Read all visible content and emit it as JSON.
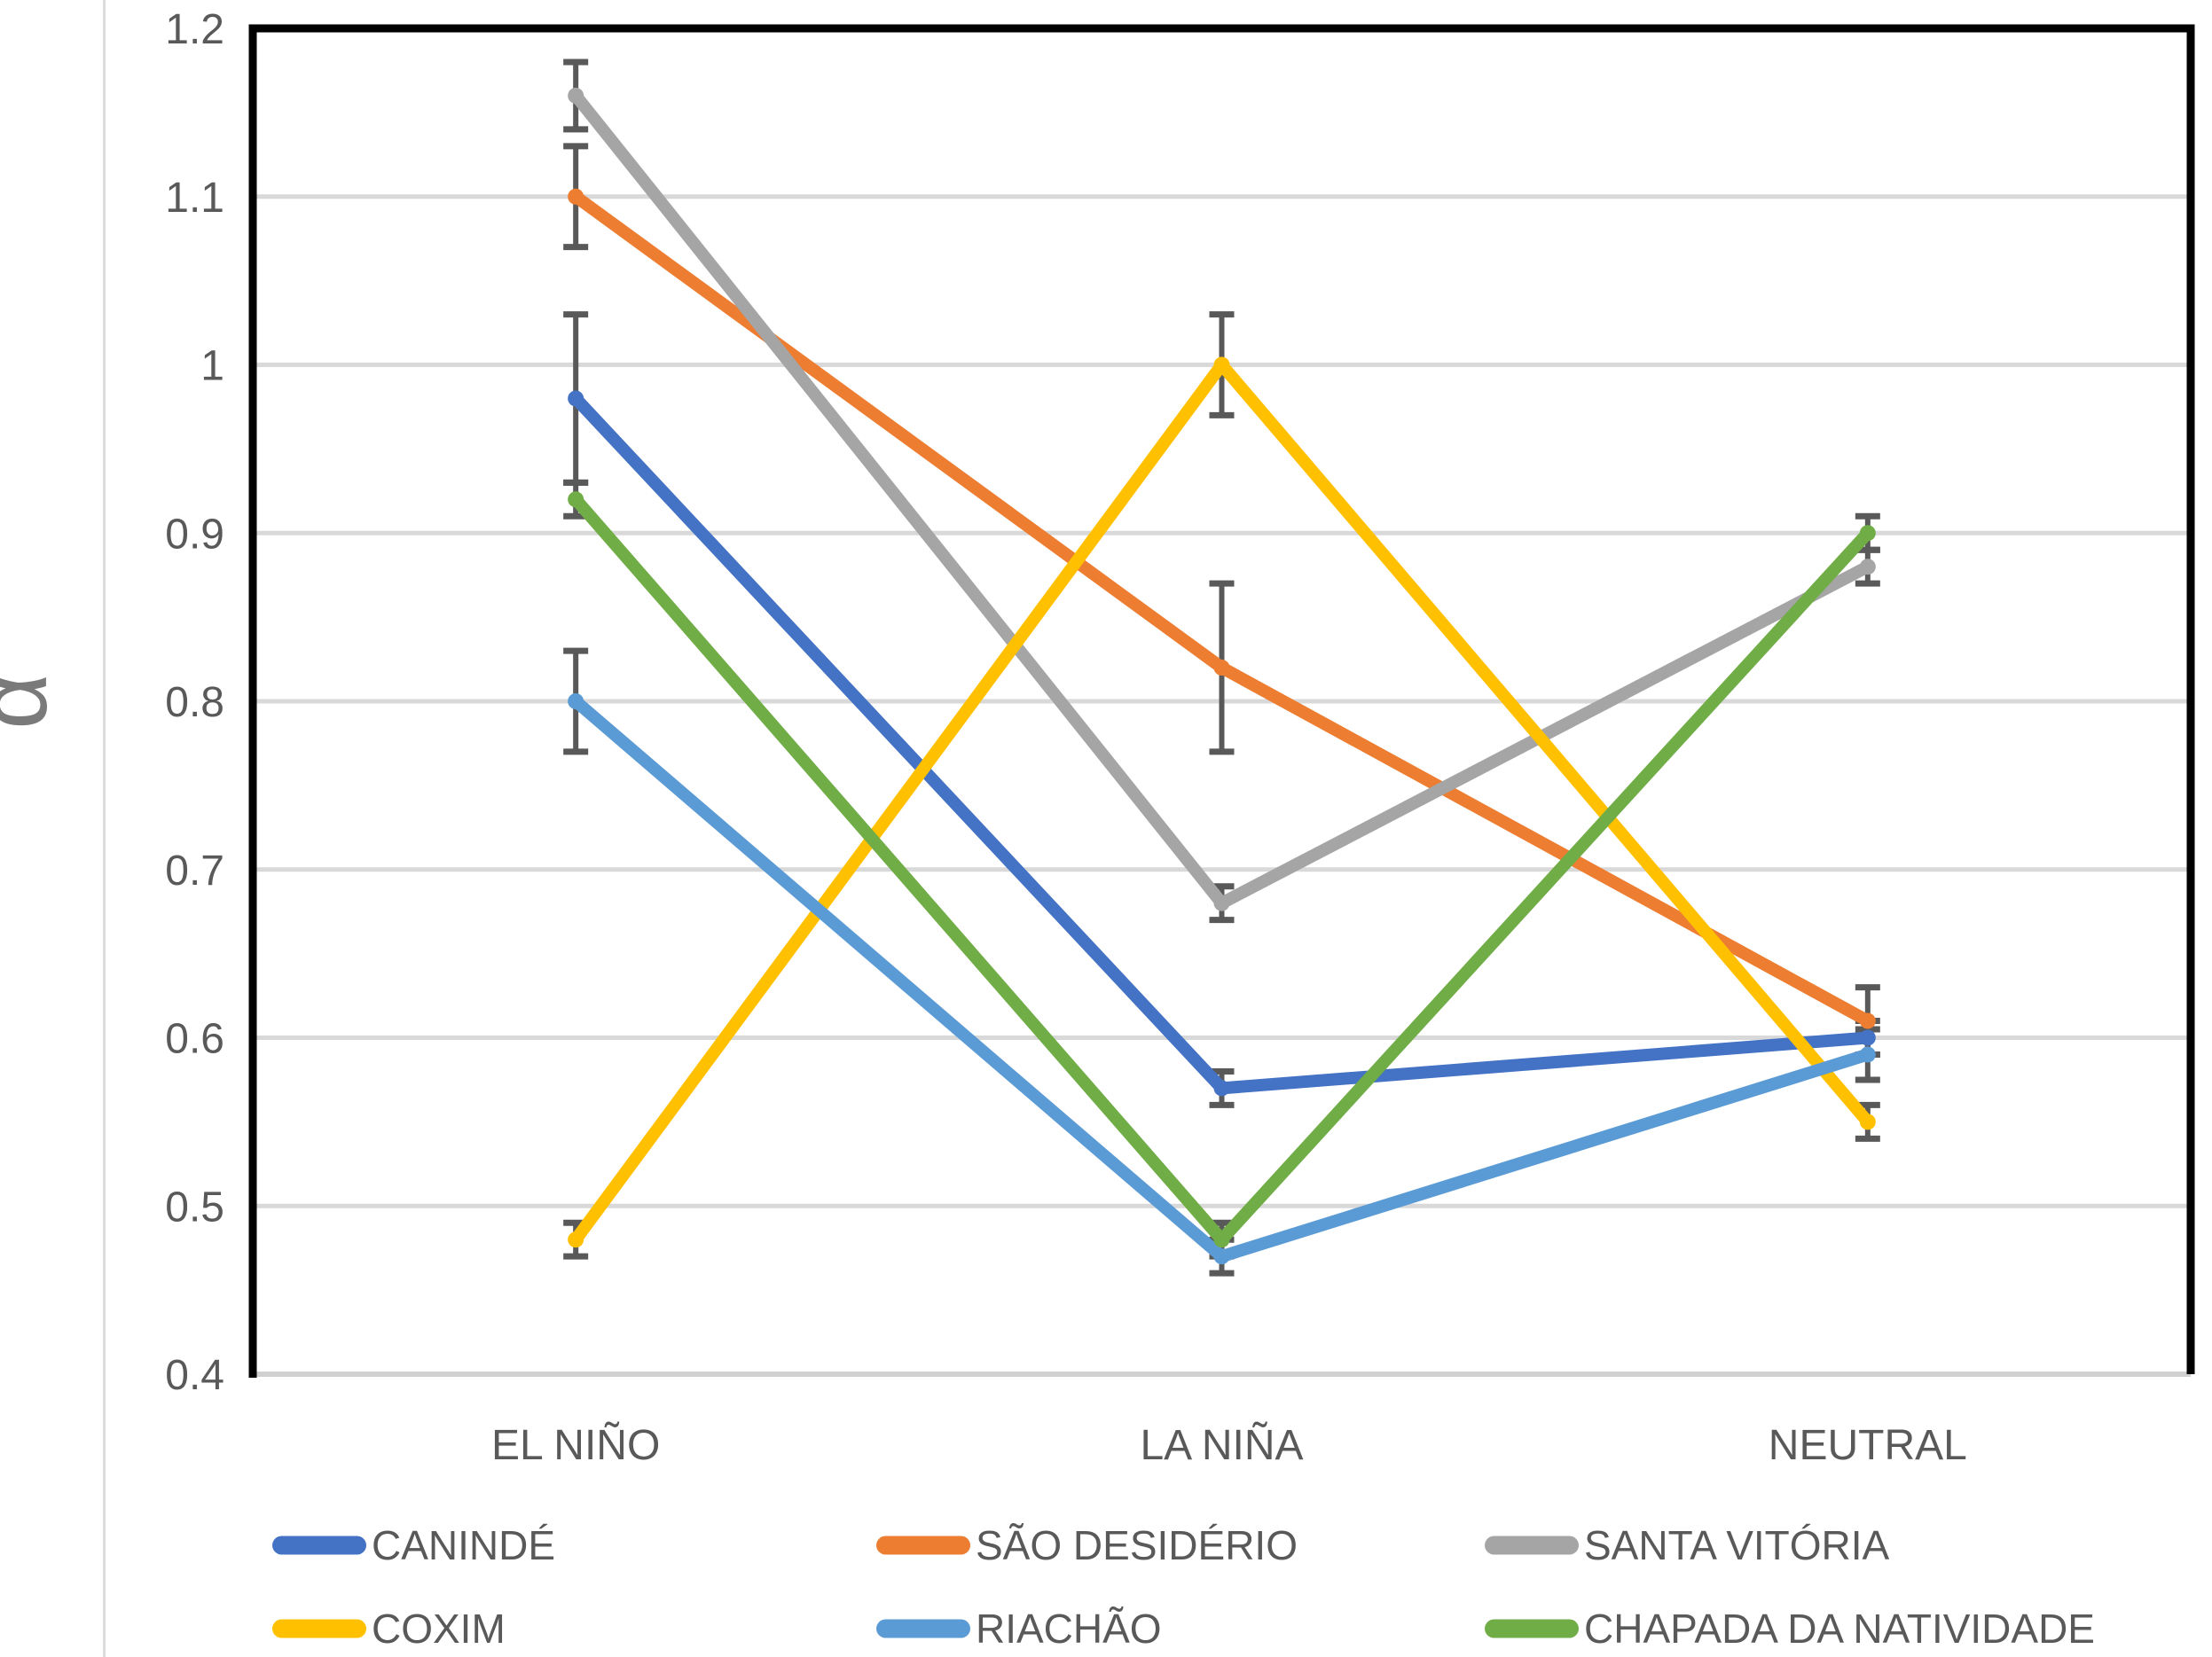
{
  "chart_data": {
    "type": "line",
    "title": "",
    "xlabel": "",
    "ylabel": "α",
    "categories": [
      "EL NIÑO",
      "LA NIÑA",
      "NEUTRAL"
    ],
    "y_axis": {
      "min": 0.4,
      "max": 1.2,
      "step": 0.1,
      "tick_labels": [
        "1.2",
        "1.1",
        "1",
        "0.9",
        "0.8",
        "0.7",
        "0.6",
        "0.5",
        "0.4"
      ]
    },
    "grid": true,
    "legend_position": "bottom",
    "error_bars": true,
    "series": [
      {
        "name": "CANINDÉ",
        "color": "#4472C4",
        "values": [
          0.98,
          0.57,
          0.6
        ],
        "errors": [
          0.05,
          0.01,
          0.01
        ]
      },
      {
        "name": "SÃO DESIDÉRIO",
        "color": "#ED7D31",
        "values": [
          1.1,
          0.82,
          0.61
        ],
        "errors": [
          0.03,
          0.05,
          0.02
        ]
      },
      {
        "name": "SANTA VITÓRIA",
        "color": "#A5A5A5",
        "values": [
          1.16,
          0.68,
          0.88
        ],
        "errors": [
          0.02,
          0.01,
          0.01
        ]
      },
      {
        "name": "COXIM",
        "color": "#FFC000",
        "values": [
          0.48,
          1.0,
          0.55
        ],
        "errors": [
          0.01,
          0.03,
          0.01
        ]
      },
      {
        "name": "RIACHÃO",
        "color": "#5B9BD5",
        "values": [
          0.8,
          0.47,
          0.59
        ],
        "errors": [
          0.03,
          0.01,
          0.015
        ]
      },
      {
        "name": "CHAPADA DA NATIVIDADE",
        "color": "#70AD47",
        "values": [
          0.92,
          0.48,
          0.9
        ],
        "errors": [
          0.01,
          0.01,
          0.01
        ]
      }
    ],
    "colors": {
      "error_bar": "#595959",
      "gridline": "#D9D9D9",
      "axis_border": "#000000",
      "bottom_border": "#D0D0D0",
      "tick_text": "#595959",
      "category_text": "#595959",
      "legend_text": "#595959",
      "axis_title_text": "#7A7A7A"
    }
  }
}
